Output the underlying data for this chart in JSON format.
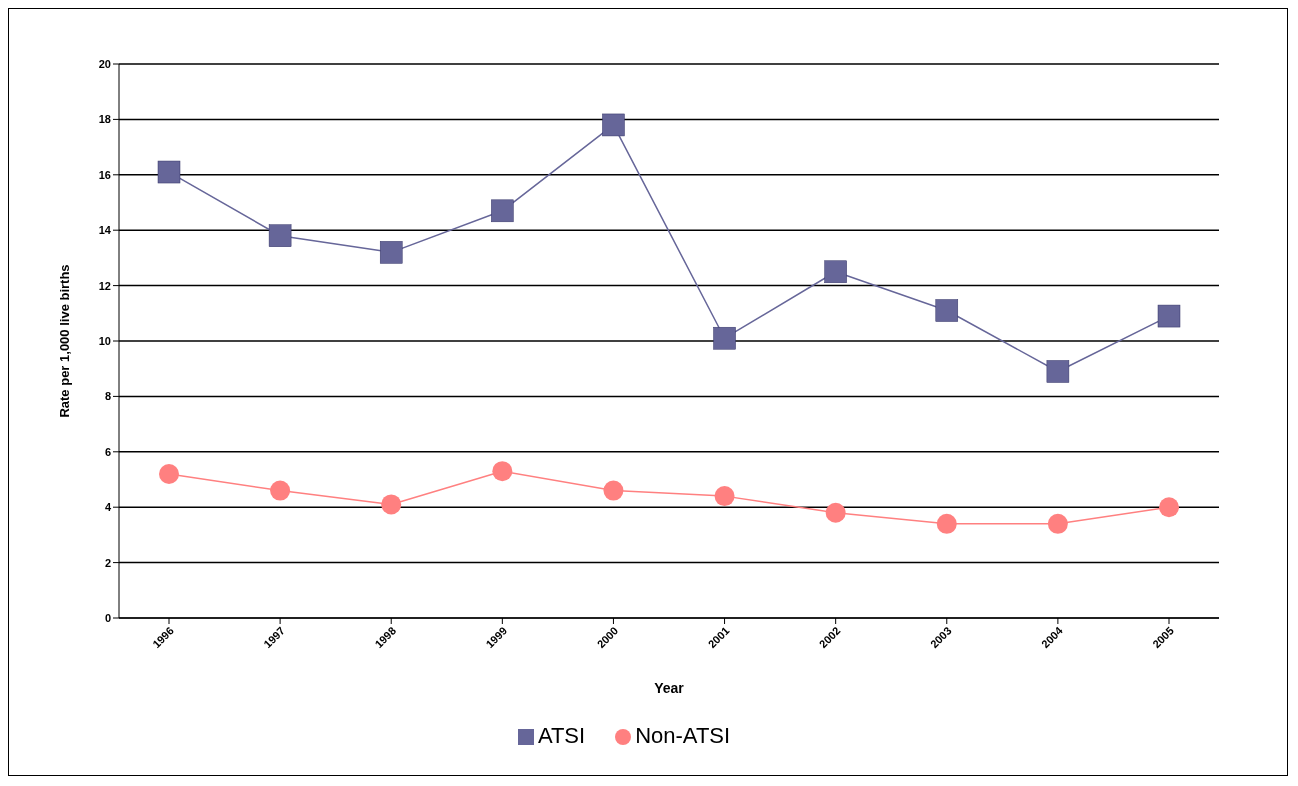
{
  "chart_data": {
    "type": "line",
    "xlabel": "Year",
    "ylabel": "Rate per 1,000 live births",
    "categories": [
      "1996",
      "1997",
      "1998",
      "1999",
      "2000",
      "2001",
      "2002",
      "2003",
      "2004",
      "2005"
    ],
    "series": [
      {
        "name": "ATSI",
        "color": "#666699",
        "marker": "square",
        "values": [
          16.1,
          13.8,
          13.2,
          14.7,
          17.8,
          10.1,
          12.5,
          11.1,
          8.9,
          10.9
        ]
      },
      {
        "name": "Non-ATSI",
        "color": "#ff8080",
        "marker": "circle",
        "values": [
          5.2,
          4.6,
          4.1,
          5.3,
          4.6,
          4.4,
          3.8,
          3.4,
          3.4,
          4.0
        ]
      }
    ],
    "ylim": [
      0,
      20
    ],
    "yticks": [
      0,
      2,
      4,
      6,
      8,
      10,
      12,
      14,
      16,
      18,
      20
    ],
    "grid": "y",
    "legend": "bottom",
    "line_style": "solid"
  }
}
